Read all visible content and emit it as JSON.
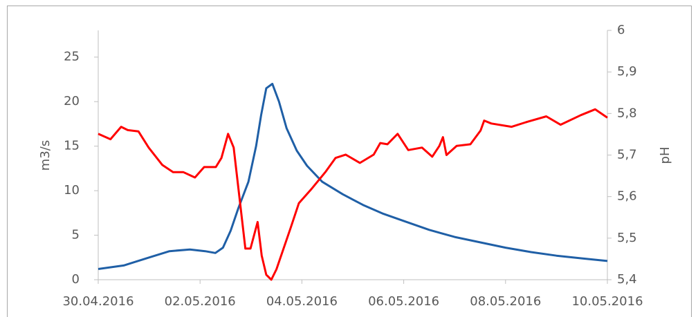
{
  "chart_data": {
    "type": "line",
    "ylabel": "m3/s",
    "y2label": "pH",
    "xlim": [
      0,
      10
    ],
    "xticks": [
      {
        "value": 0,
        "label": "30.04.2016"
      },
      {
        "value": 2,
        "label": "02.05.2016"
      },
      {
        "value": 4,
        "label": "04.05.2016"
      },
      {
        "value": 6,
        "label": "06.05.2016"
      },
      {
        "value": 8,
        "label": "08.05.2016"
      },
      {
        "value": 10,
        "label": "10.05.2016"
      }
    ],
    "ylim": [
      0,
      28
    ],
    "yticks": [
      0,
      5,
      10,
      15,
      20,
      25
    ],
    "y2lim": [
      5.4,
      6
    ],
    "y2ticks": [
      {
        "value": 5.4,
        "label": "5,4"
      },
      {
        "value": 5.5,
        "label": "5,5"
      },
      {
        "value": 5.6,
        "label": "5,6"
      },
      {
        "value": 5.7,
        "label": "5,7"
      },
      {
        "value": 5.8,
        "label": "5,8"
      },
      {
        "value": 5.9,
        "label": "5,9"
      },
      {
        "value": 6,
        "label": "6"
      }
    ],
    "series": [
      {
        "color": "#1f5fa6",
        "axis": "y",
        "x": [
          0,
          0.5,
          1.0,
          1.4,
          1.8,
          2.1,
          2.3,
          2.45,
          2.6,
          2.75,
          2.95,
          3.1,
          3.2,
          3.3,
          3.42,
          3.55,
          3.7,
          3.9,
          4.1,
          4.4,
          4.8,
          5.2,
          5.6,
          6.0,
          6.5,
          7.0,
          7.5,
          8.0,
          8.5,
          9.0,
          9.5,
          10
        ],
        "values": [
          1.2,
          1.6,
          2.5,
          3.2,
          3.4,
          3.2,
          3.0,
          3.6,
          5.5,
          8,
          11,
          15,
          18.5,
          21.5,
          22,
          20,
          17,
          14.5,
          12.8,
          11,
          9.6,
          8.4,
          7.4,
          6.6,
          5.6,
          4.8,
          4.2,
          3.6,
          3.1,
          2.7,
          2.4,
          2.1
        ]
      },
      {
        "color": "#ff0000",
        "axis": "y2",
        "x": [
          0,
          0.24,
          0.45,
          0.58,
          0.79,
          0.99,
          1.26,
          1.47,
          1.67,
          1.9,
          2.08,
          2.31,
          2.42,
          2.55,
          2.66,
          2.89,
          2.99,
          3.13,
          3.21,
          3.3,
          3.4,
          3.5,
          3.78,
          3.94,
          4.18,
          4.46,
          4.66,
          4.86,
          5.14,
          5.41,
          5.54,
          5.68,
          5.88,
          6.09,
          6.36,
          6.56,
          6.7,
          6.77,
          6.84,
          7.04,
          7.31,
          7.51,
          7.58,
          7.72,
          8.12,
          8.4,
          8.8,
          9.08,
          9.48,
          9.76,
          10
        ],
        "values": [
          5.751,
          5.738,
          5.768,
          5.76,
          5.757,
          5.718,
          5.676,
          5.659,
          5.659,
          5.646,
          5.671,
          5.671,
          5.693,
          5.751,
          5.718,
          5.475,
          5.475,
          5.539,
          5.458,
          5.412,
          5.4,
          5.425,
          5.525,
          5.584,
          5.617,
          5.659,
          5.693,
          5.701,
          5.681,
          5.701,
          5.729,
          5.726,
          5.751,
          5.712,
          5.718,
          5.696,
          5.722,
          5.743,
          5.7,
          5.722,
          5.726,
          5.759,
          5.783,
          5.776,
          5.768,
          5.779,
          5.793,
          5.773,
          5.796,
          5.81,
          5.79
        ]
      }
    ]
  }
}
